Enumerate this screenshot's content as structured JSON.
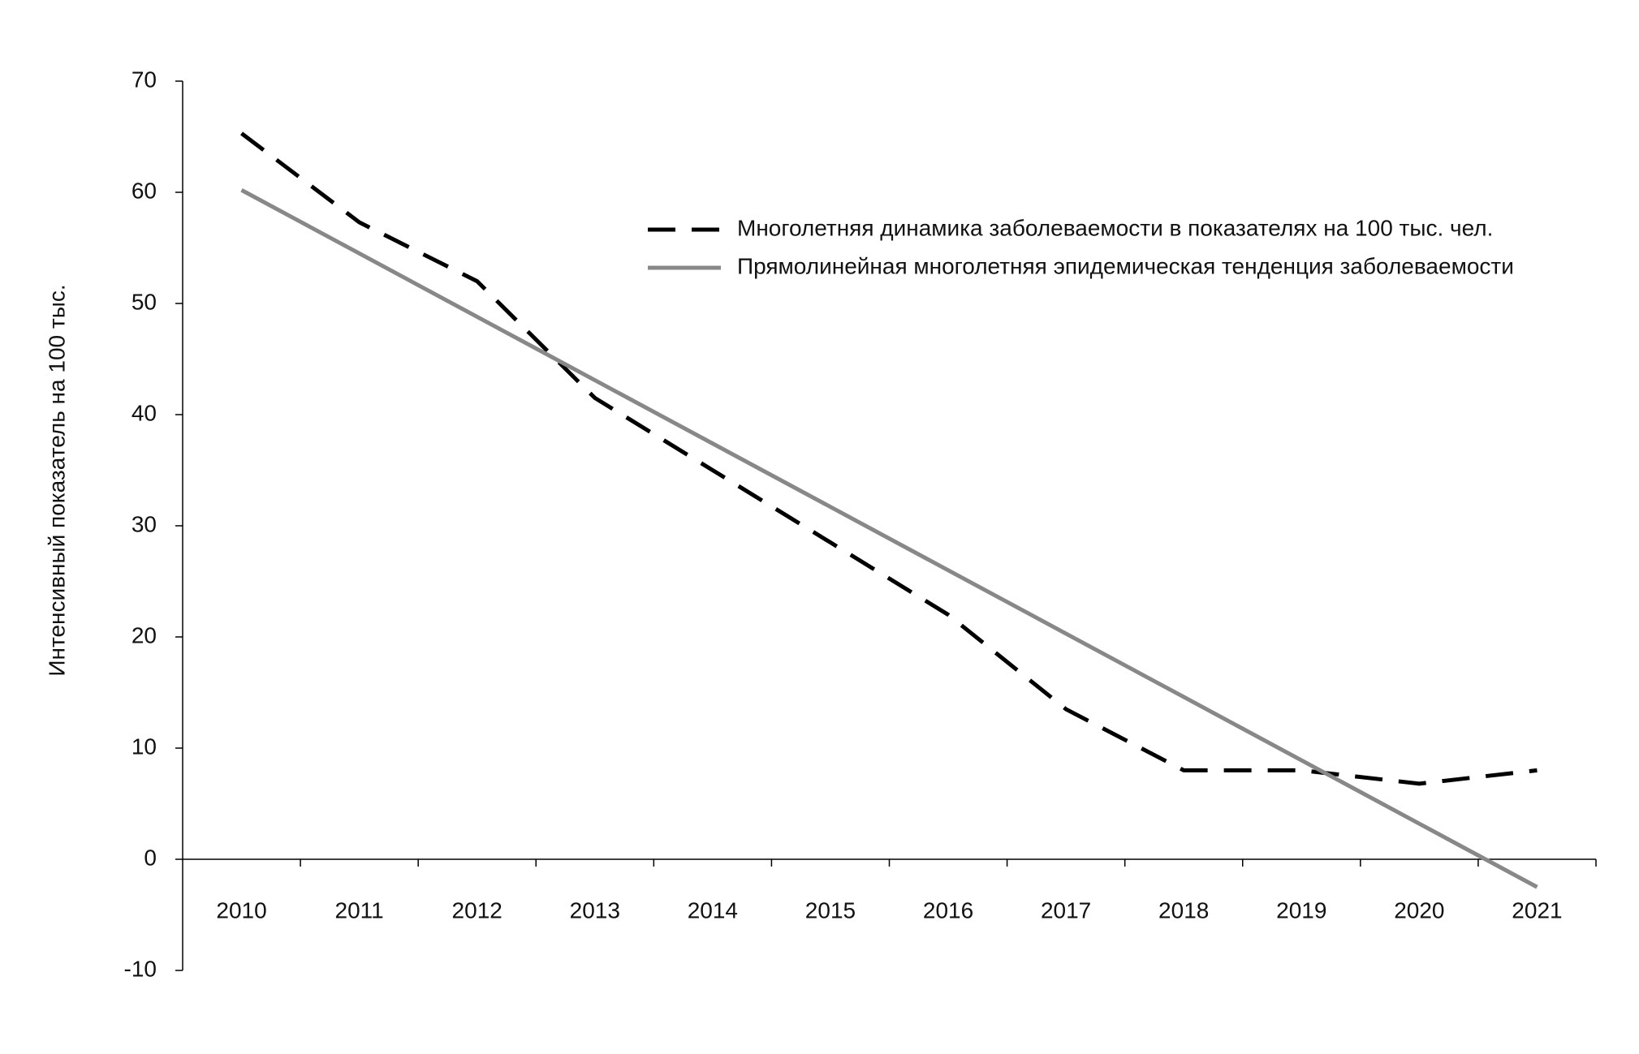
{
  "chart_data": {
    "type": "line",
    "y_label": "Интенсивный показатель на 100 тыс.",
    "categories": [
      "2010",
      "2011",
      "2012",
      "2013",
      "2014",
      "2015",
      "2016",
      "2017",
      "2018",
      "2019",
      "2020",
      "2021"
    ],
    "series": [
      {
        "name": "Многолетняя динамика заболеваемости в показателях на 100 тыс. чел.",
        "color": "#000000",
        "dashed": true,
        "values": [
          65.3,
          57.3,
          52,
          41.5,
          35,
          28.5,
          22,
          13.5,
          8,
          8,
          6.8,
          8
        ]
      },
      {
        "name": "Прямолинейная многолетняя эпидемическая тенденция заболеваемости",
        "color": "#888888",
        "dashed": false,
        "values": [
          60.2,
          54.5,
          48.8,
          43.1,
          37.4,
          31.7,
          26.0,
          20.3,
          14.6,
          8.9,
          3.2,
          -2.5
        ]
      }
    ],
    "ylim": [
      -10,
      70
    ],
    "yticks": [
      -10,
      0,
      10,
      20,
      30,
      40,
      50,
      60,
      70
    ],
    "grid": false,
    "legend": "upper right"
  }
}
